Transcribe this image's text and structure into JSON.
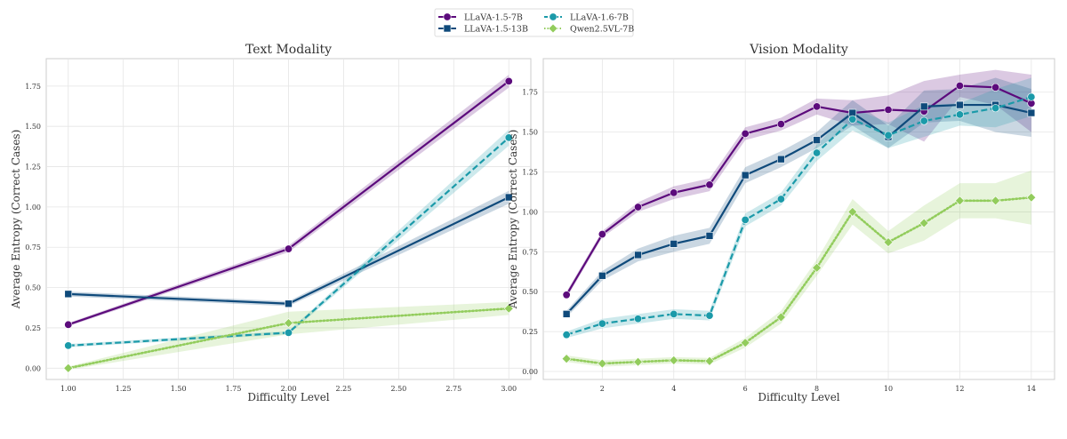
{
  "legend": [
    {
      "name": "LLaVA-1.5-7B",
      "color": "#5c0b7c",
      "marker": "circle",
      "dash": "solid"
    },
    {
      "name": "LLaVA-1.5-13B",
      "color": "#0f4a7b",
      "marker": "square",
      "dash": "solid"
    },
    {
      "name": "LLaVA-1.6-7B",
      "color": "#1b9aa9",
      "marker": "circle",
      "dash": "dashed"
    },
    {
      "name": "Qwen2.5VL-7B",
      "color": "#92cc5c",
      "marker": "diamond",
      "dash": "dotted"
    }
  ],
  "chart_data": [
    {
      "type": "line",
      "title": "Text Modality",
      "xlabel": "Difficulty Level",
      "ylabel": "Average Entropy (Correct Cases)",
      "xlim": [
        0.9,
        3.1
      ],
      "ylim": [
        -0.07,
        1.92
      ],
      "xticks": [
        "1.00",
        "1.25",
        "1.50",
        "1.75",
        "2.00",
        "2.25",
        "2.50",
        "2.75",
        "3.00"
      ],
      "yticks": [
        "0.00",
        "0.25",
        "0.50",
        "0.75",
        "1.00",
        "1.25",
        "1.50",
        "1.75"
      ],
      "grid": true,
      "x": [
        1,
        2,
        3
      ],
      "series": [
        {
          "name": "LLaVA-1.5-7B",
          "values": [
            0.27,
            0.74,
            1.78
          ],
          "ci": [
            0.01,
            0.02,
            0.04
          ]
        },
        {
          "name": "LLaVA-1.5-13B",
          "values": [
            0.46,
            0.4,
            1.06
          ],
          "ci": [
            0.015,
            0.015,
            0.04
          ]
        },
        {
          "name": "LLaVA-1.6-7B",
          "values": [
            0.14,
            0.22,
            1.43
          ],
          "ci": [
            0.01,
            0.01,
            0.05
          ]
        },
        {
          "name": "Qwen2.5VL-7B",
          "values": [
            0.0,
            0.28,
            0.37
          ],
          "ci": [
            0.01,
            0.07,
            0.04
          ]
        }
      ]
    },
    {
      "type": "line",
      "title": "Vision Modality",
      "xlabel": "Difficulty Level",
      "ylabel": "Average Entropy (Correct Cases)",
      "xlim": [
        0.35,
        14.65
      ],
      "ylim": [
        -0.05,
        1.96
      ],
      "xticks": [
        "2",
        "4",
        "6",
        "8",
        "10",
        "12",
        "14"
      ],
      "yticks": [
        "0.00",
        "0.25",
        "0.50",
        "0.75",
        "1.00",
        "1.25",
        "1.50",
        "1.75"
      ],
      "grid": true,
      "x": [
        1,
        2,
        3,
        4,
        5,
        6,
        7,
        8,
        9,
        10,
        11,
        12,
        13,
        14
      ],
      "series": [
        {
          "name": "LLaVA-1.5-7B",
          "values": [
            0.48,
            0.86,
            1.03,
            1.12,
            1.17,
            1.49,
            1.55,
            1.66,
            1.62,
            1.64,
            1.63,
            1.79,
            1.78,
            1.68
          ],
          "ci": [
            0.02,
            0.02,
            0.03,
            0.04,
            0.04,
            0.04,
            0.04,
            0.05,
            0.08,
            0.09,
            0.19,
            0.07,
            0.11,
            0.18
          ]
        },
        {
          "name": "LLaVA-1.5-13B",
          "values": [
            0.36,
            0.6,
            0.73,
            0.8,
            0.85,
            1.23,
            1.33,
            1.45,
            1.62,
            1.47,
            1.66,
            1.67,
            1.67,
            1.62
          ],
          "ci": [
            0.02,
            0.03,
            0.04,
            0.05,
            0.05,
            0.05,
            0.05,
            0.05,
            0.08,
            0.07,
            0.1,
            0.1,
            0.17,
            0.15
          ]
        },
        {
          "name": "LLaVA-1.6-7B",
          "values": [
            0.23,
            0.3,
            0.33,
            0.36,
            0.35,
            0.95,
            1.08,
            1.37,
            1.58,
            1.48,
            1.57,
            1.61,
            1.65,
            1.72
          ],
          "ci": [
            0.02,
            0.03,
            0.03,
            0.03,
            0.03,
            0.04,
            0.04,
            0.05,
            0.07,
            0.08,
            0.1,
            0.07,
            0.12,
            0.12
          ]
        },
        {
          "name": "Qwen2.5VL-7B",
          "values": [
            0.08,
            0.05,
            0.06,
            0.07,
            0.065,
            0.18,
            0.34,
            0.65,
            1.0,
            0.81,
            0.93,
            1.07,
            1.07,
            1.09
          ],
          "ci": [
            0.02,
            0.02,
            0.02,
            0.02,
            0.02,
            0.03,
            0.04,
            0.05,
            0.08,
            0.07,
            0.11,
            0.11,
            0.11,
            0.17
          ]
        }
      ]
    }
  ]
}
